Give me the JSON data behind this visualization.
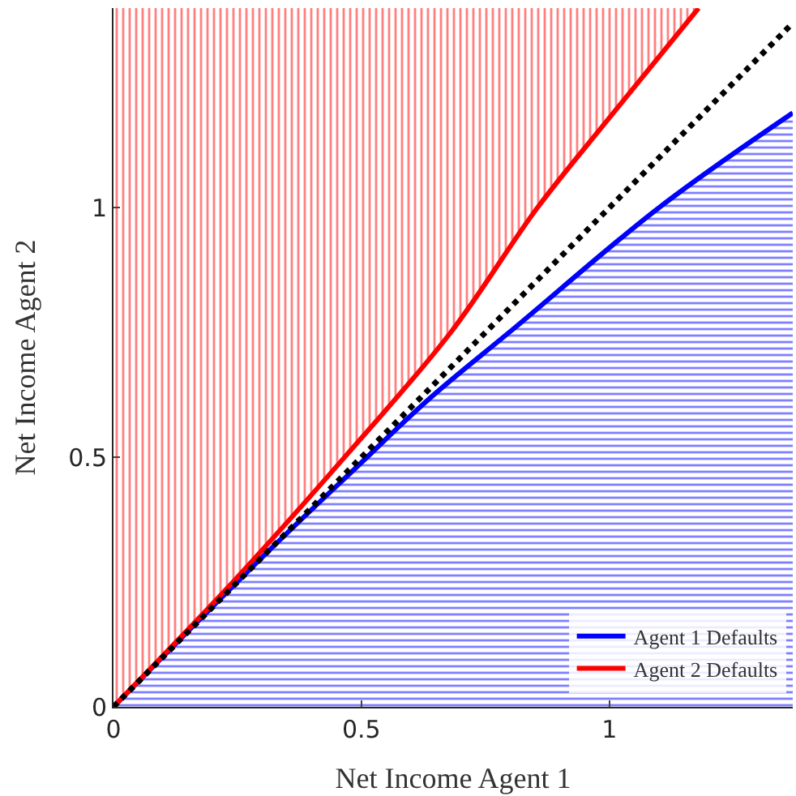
{
  "chart_data": {
    "type": "line",
    "xlabel": "Net Income Agent 1",
    "ylabel": "Net Income Agent 2",
    "xlim": [
      0,
      1.37
    ],
    "ylim": [
      0,
      1.4
    ],
    "xticks": [
      0,
      0.5,
      1
    ],
    "yticks": [
      0,
      0.5,
      1
    ],
    "legend": "bottom right",
    "marker": "none",
    "series": [
      {
        "name": "Agent 1 Defaults",
        "color": "#0000ff",
        "x": [
          0,
          0.3,
          0.49,
          0.64,
          0.81,
          1.1,
          1.37
        ],
        "values": [
          0,
          0.3,
          0.48,
          0.62,
          0.76,
          1.0,
          1.19
        ],
        "lower": [
          0,
          0,
          0,
          0,
          0,
          0,
          0
        ],
        "upper": [
          0,
          0.3,
          0.48,
          0.62,
          0.76,
          1.0,
          1.19
        ]
      },
      {
        "name": "Agent 2 Defaults",
        "color": "#ff0000",
        "x": [
          0,
          0.25,
          0.466,
          0.68,
          0.855,
          1.0,
          1.18
        ],
        "values": [
          0,
          0.26,
          0.5,
          0.75,
          1.0,
          1.18,
          1.4
        ],
        "lower": [
          0,
          0.26,
          0.5,
          0.75,
          1.0,
          1.18,
          1.4
        ],
        "upper": [
          1.4,
          1.4,
          1.4,
          1.4,
          1.4,
          1.4,
          1.4
        ]
      },
      {
        "color": "#000000",
        "line_style": "dotted",
        "x": [
          0,
          1.37
        ],
        "values": [
          0,
          1.37
        ]
      }
    ]
  }
}
